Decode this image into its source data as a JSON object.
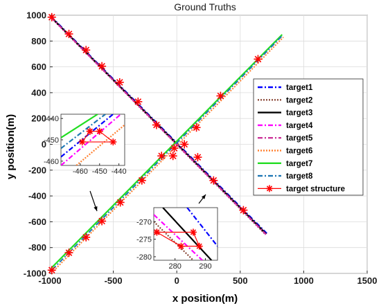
{
  "chart_data": {
    "type": "line",
    "title": "Ground Truths",
    "xlabel": "x position(m)",
    "ylabel": "y position(m)",
    "xlim": [
      -1000,
      1500
    ],
    "ylim": [
      -1000,
      1000
    ],
    "xticks": [
      "-1000",
      "-500",
      "0",
      "500",
      "1000",
      "1500"
    ],
    "yticks": [
      "-1000",
      "-800",
      "-600",
      "-400",
      "-200",
      "0",
      "200",
      "400",
      "600",
      "800",
      "1000"
    ],
    "grid": true,
    "legend_position": "right",
    "series": [
      {
        "name": "target1",
        "color": "#0000ff",
        "style": "dashdot",
        "x": [
          -990,
          710
        ],
        "y": [
          990,
          -690
        ]
      },
      {
        "name": "target2",
        "color": "#8b4a3a",
        "style": "dotted",
        "x": [
          -990,
          700
        ],
        "y": [
          980,
          -700
        ]
      },
      {
        "name": "target3",
        "color": "#000000",
        "style": "solid",
        "x": [
          -990,
          705
        ],
        "y": [
          985,
          -695
        ]
      },
      {
        "name": "target4",
        "color": "#ff00ff",
        "style": "dashdot",
        "x": [
          -990,
          702
        ],
        "y": [
          982,
          -698
        ]
      },
      {
        "name": "target5",
        "color": "#cc3399",
        "style": "dashdot",
        "x": [
          -990,
          703
        ],
        "y": [
          983,
          -697
        ]
      },
      {
        "name": "target6",
        "color": "#ff8030",
        "style": "dotted",
        "x": [
          -970,
          840
        ],
        "y": [
          -980,
          830
        ]
      },
      {
        "name": "target7",
        "color": "#22dd22",
        "style": "solid",
        "x": [
          -990,
          830
        ],
        "y": [
          -960,
          850
        ]
      },
      {
        "name": "target8",
        "color": "#1f77b4",
        "style": "dashdot",
        "x": [
          -980,
          835
        ],
        "y": [
          -970,
          845
        ]
      }
    ],
    "structure": {
      "name": "target structure",
      "color": "#ff0000",
      "marker": "asterisk",
      "points_desc": [
        [
          -985,
          985
        ],
        [
          -850,
          855
        ],
        [
          -715,
          730
        ],
        [
          -590,
          605
        ],
        [
          -450,
          480
        ],
        [
          -305,
          330
        ],
        [
          -160,
          150
        ],
        [
          -30,
          -90
        ],
        [
          60,
          0
        ],
        [
          165,
          -100
        ],
        [
          290,
          -280
        ],
        [
          525,
          -510
        ]
      ],
      "points_asc": [
        [
          -985,
          -975
        ],
        [
          -850,
          -840
        ],
        [
          -715,
          -720
        ],
        [
          -590,
          -595
        ],
        [
          -445,
          -450
        ],
        [
          -275,
          -280
        ],
        [
          -120,
          -90
        ],
        [
          -20,
          -30
        ],
        [
          155,
          130
        ],
        [
          345,
          375
        ],
        [
          640,
          660
        ]
      ]
    },
    "insets": [
      {
        "xticks": [
          "-460",
          "-450",
          "-440"
        ],
        "yticks": [
          "-440",
          "-450",
          "-460"
        ],
        "xlim": [
          -470,
          -437
        ],
        "ylim": [
          -462,
          -438
        ]
      },
      {
        "xticks": [
          "280",
          "290"
        ],
        "yticks": [
          "-270",
          "-275",
          "-280"
        ],
        "xlim": [
          273,
          294
        ],
        "ylim": [
          -281,
          -266
        ]
      }
    ]
  }
}
